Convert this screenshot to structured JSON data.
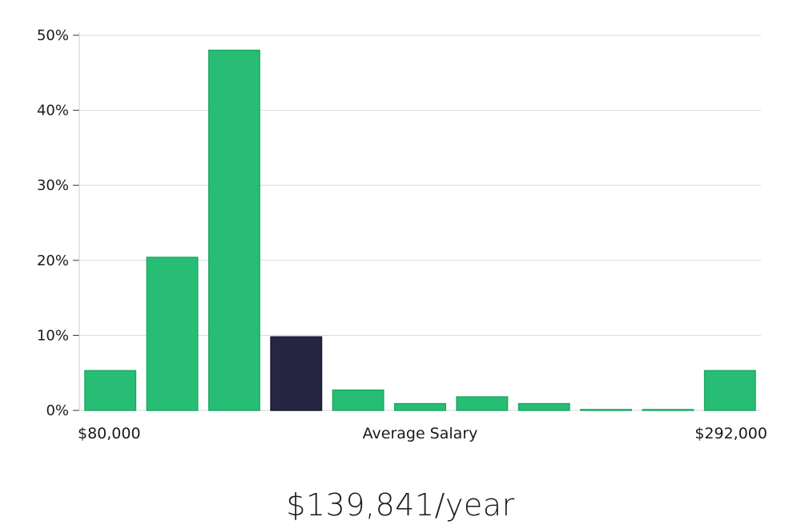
{
  "chart_data": {
    "type": "bar",
    "title": "",
    "xlabel": "Average Salary",
    "ylabel": "",
    "x_min_label": "$80,000",
    "x_max_label": "$292,000",
    "ylim": [
      0,
      50
    ],
    "yticks": [
      0,
      10,
      20,
      30,
      40,
      50
    ],
    "ytick_labels": [
      "0%",
      "10%",
      "20%",
      "30%",
      "40%",
      "50%"
    ],
    "values": [
      5.3,
      20.4,
      48.0,
      9.8,
      2.7,
      0.9,
      1.8,
      0.9,
      0.1,
      0.1,
      5.3
    ],
    "highlight_index": 3,
    "colors": {
      "bar": "#27bd75",
      "bar_edge": "#1fa865",
      "highlight": "#272541",
      "grid": "#d9d9d9"
    }
  },
  "summary": {
    "salary_text": "$139,841/year"
  }
}
